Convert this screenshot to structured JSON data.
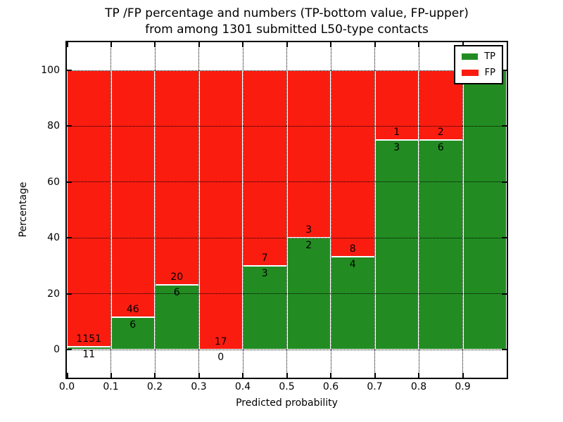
{
  "chart_data": {
    "type": "stacked_bar_percentage",
    "title_line1": "TP /FP percentage and numbers (TP-bottom value, FP-upper)",
    "title_line2": "from among 1301 submitted L50-type contacts",
    "xlabel": "Predicted probability",
    "ylabel": "Percentage",
    "total_contacts": 1301,
    "xlim": [
      0.0,
      1.0
    ],
    "ylim": [
      -10,
      110
    ],
    "bin_width": 0.1,
    "grid": true,
    "x_tick_labels": [
      "0.0",
      "0.1",
      "0.2",
      "0.3",
      "0.4",
      "0.5",
      "0.6",
      "0.7",
      "0.8",
      "0.9"
    ],
    "y_tick_values": [
      0,
      20,
      40,
      60,
      80,
      100
    ],
    "y_tick_labels": [
      "0",
      "20",
      "40",
      "60",
      "80",
      "100"
    ],
    "bins": [
      {
        "range": "0.0-0.1",
        "tp": 11,
        "fp": 1151
      },
      {
        "range": "0.1-0.2",
        "tp": 6,
        "fp": 46
      },
      {
        "range": "0.2-0.3",
        "tp": 6,
        "fp": 20
      },
      {
        "range": "0.3-0.4",
        "tp": 0,
        "fp": 17
      },
      {
        "range": "0.4-0.5",
        "tp": 3,
        "fp": 7
      },
      {
        "range": "0.5-0.6",
        "tp": 2,
        "fp": 3
      },
      {
        "range": "0.6-0.7",
        "tp": 4,
        "fp": 8
      },
      {
        "range": "0.7-0.8",
        "tp": 3,
        "fp": 1
      },
      {
        "range": "0.8-0.9",
        "tp": 6,
        "fp": 2
      },
      {
        "range": "0.9-1.0",
        "tp": 5,
        "fp": 0
      }
    ],
    "colors": {
      "tp": "#228c22",
      "fp": "#fb1c10"
    },
    "legend": {
      "position": "upper right",
      "entries": [
        {
          "key": "tp",
          "label": "TP",
          "color": "#228c22"
        },
        {
          "key": "fp",
          "label": "FP",
          "color": "#fb1c10"
        }
      ]
    }
  }
}
